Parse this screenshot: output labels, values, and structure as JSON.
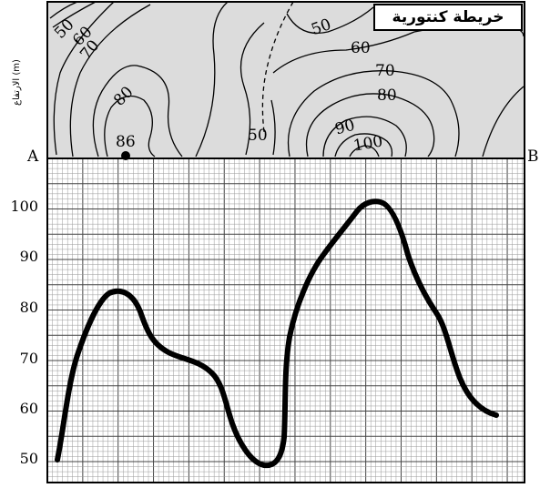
{
  "map": {
    "title": "خريطة كنتورية",
    "contour_labels": [
      "50",
      "60",
      "70",
      "80",
      "86",
      "50",
      "50",
      "60",
      "70",
      "80",
      "90",
      "100"
    ]
  },
  "section": {
    "y_axis_label": "الارتفاع (m)",
    "point_a": "A",
    "point_b": "B",
    "y_ticks": [
      "100",
      "90",
      "80",
      "70",
      "60",
      "50"
    ]
  },
  "colors": {
    "map_fill": "#dcdcdc",
    "profile_line": "#000000",
    "grid_major": "#444444",
    "grid_minor": "#9a9a9a"
  }
}
